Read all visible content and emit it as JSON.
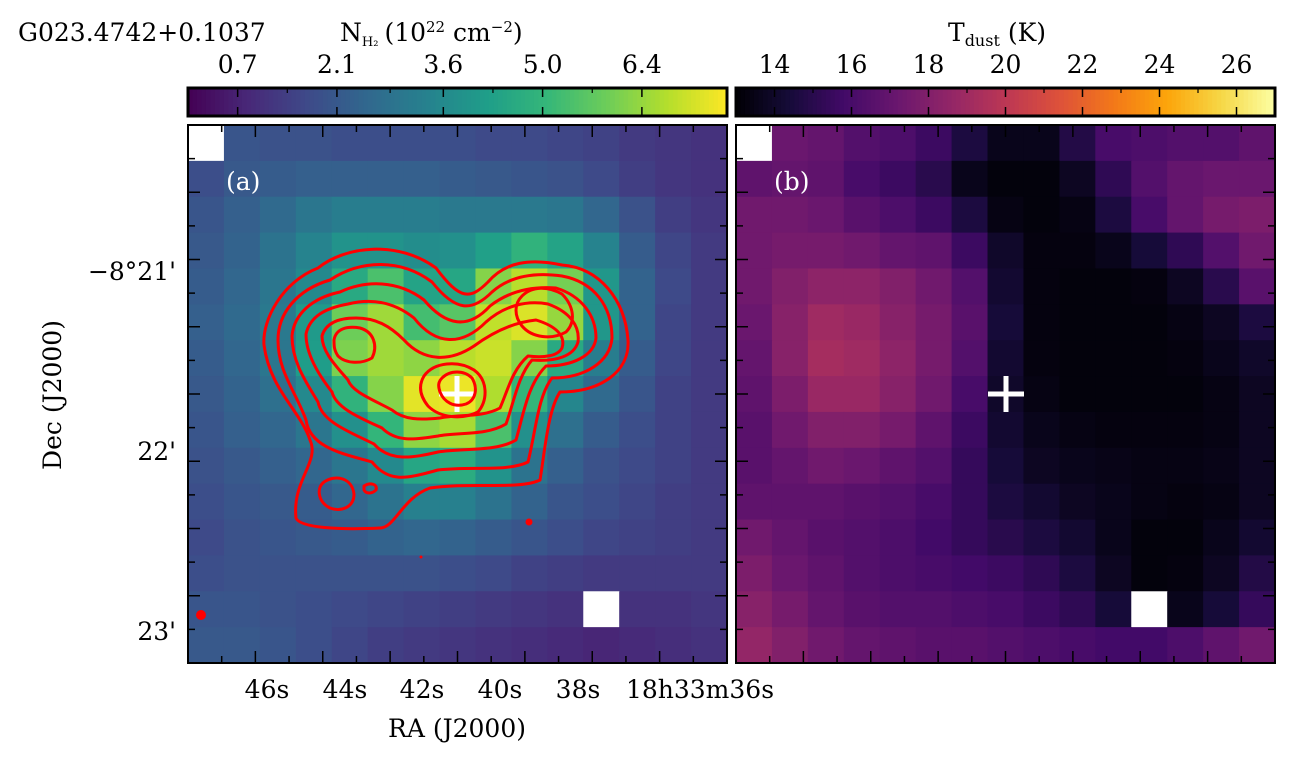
{
  "header": {
    "source_name": "G023.4742+0.1037",
    "nh2_label": "N",
    "nh2_sub": "H₂",
    "nh2_units": "(10",
    "nh2_exp": "22",
    "nh2_units2": " cm",
    "nh2_exp2": "−2",
    "nh2_close": ")",
    "tdust_label": "T",
    "tdust_sub": "dust",
    "tdust_units": " (K)"
  },
  "axes": {
    "xlabel": "RA (J2000)",
    "ylabel": "Dec (J2000)",
    "xticks": [
      "46s",
      "44s",
      "42s",
      "40s",
      "38s",
      "18h33m36s"
    ],
    "yticks": [
      "−8°21'",
      "22'",
      "23'"
    ]
  },
  "colorbars": {
    "nh2": {
      "ticks": [
        "0.7",
        "2.1",
        "3.6",
        "5.0",
        "6.4"
      ],
      "range": [
        0.0,
        7.6
      ],
      "colormap": "viridis"
    },
    "tdust": {
      "ticks": [
        "14",
        "16",
        "18",
        "20",
        "22",
        "24",
        "26"
      ],
      "range": [
        13.0,
        27.0
      ],
      "colormap": "inferno"
    }
  },
  "panels": {
    "a": {
      "label": "(a)"
    },
    "b": {
      "label": "(b)"
    }
  },
  "colors": {
    "contour": "#ff0000",
    "marker": "#ffffff"
  },
  "chart_data": [
    {
      "type": "heatmap",
      "panel": "(a)",
      "quantity": "N(H2)",
      "colorbar_label": "N_H2 (10^22 cm^-2)",
      "colorbar_ticks": [
        0.7,
        2.1,
        3.6,
        5.0,
        6.4
      ],
      "grid_cols": 15,
      "grid_rows": 15,
      "values": [
        [
          -1,
          2.0,
          1.9,
          1.9,
          1.8,
          1.8,
          1.8,
          1.8,
          1.7,
          1.7,
          1.6,
          1.5,
          1.3,
          1.2,
          1.1
        ],
        [
          1.8,
          2.1,
          2.2,
          2.3,
          2.3,
          2.3,
          2.3,
          2.2,
          2.1,
          2.0,
          1.9,
          1.7,
          1.4,
          1.2,
          1.1
        ],
        [
          2.0,
          2.3,
          2.6,
          3.0,
          3.2,
          3.2,
          3.2,
          3.1,
          3.1,
          3.1,
          3.0,
          2.5,
          1.9,
          1.4,
          1.2
        ],
        [
          2.1,
          2.4,
          2.9,
          3.4,
          3.9,
          3.9,
          3.7,
          3.8,
          4.3,
          4.9,
          4.4,
          3.4,
          2.2,
          1.6,
          1.3
        ],
        [
          2.2,
          2.5,
          3.0,
          3.6,
          4.6,
          5.4,
          4.4,
          4.5,
          6.2,
          6.8,
          6.0,
          4.0,
          2.4,
          1.7,
          1.3
        ],
        [
          2.3,
          2.6,
          3.1,
          4.1,
          5.9,
          6.5,
          5.3,
          5.6,
          6.9,
          7.2,
          6.4,
          4.0,
          2.4,
          1.6,
          1.3
        ],
        [
          2.2,
          2.5,
          3.0,
          4.2,
          6.1,
          6.5,
          6.3,
          6.8,
          7.0,
          6.2,
          4.6,
          3.2,
          2.2,
          1.6,
          1.3
        ],
        [
          2.1,
          2.4,
          2.8,
          3.6,
          4.9,
          6.2,
          7.3,
          7.4,
          6.7,
          5.0,
          3.5,
          2.6,
          2.0,
          1.5,
          1.3
        ],
        [
          2.0,
          2.3,
          2.5,
          3.0,
          3.8,
          5.0,
          6.3,
          6.6,
          5.4,
          3.8,
          2.8,
          2.2,
          1.8,
          1.5,
          1.3
        ],
        [
          1.9,
          2.1,
          2.3,
          2.5,
          3.0,
          3.6,
          4.5,
          4.7,
          3.9,
          2.9,
          2.3,
          1.9,
          1.7,
          1.5,
          1.3
        ],
        [
          1.8,
          2.0,
          2.1,
          2.2,
          2.5,
          2.9,
          3.3,
          3.3,
          2.9,
          2.4,
          2.0,
          1.8,
          1.6,
          1.4,
          1.3
        ],
        [
          1.7,
          1.9,
          2.0,
          2.1,
          2.2,
          2.4,
          2.5,
          2.4,
          2.2,
          2.0,
          1.8,
          1.6,
          1.5,
          1.4,
          1.3
        ],
        [
          1.8,
          1.9,
          1.9,
          1.9,
          1.9,
          1.9,
          1.9,
          1.8,
          1.7,
          1.5,
          1.4,
          1.3,
          1.3,
          1.3,
          1.3
        ],
        [
          2.0,
          2.0,
          1.9,
          1.8,
          1.7,
          1.6,
          1.5,
          1.4,
          1.3,
          1.2,
          1.1,
          -1,
          1.1,
          1.1,
          1.2
        ],
        [
          2.1,
          2.1,
          2.0,
          1.8,
          1.6,
          1.4,
          1.3,
          1.2,
          1.1,
          1.0,
          0.9,
          0.8,
          0.9,
          1.0,
          1.1
        ]
      ],
      "contours": true,
      "marker": "+"
    },
    {
      "type": "heatmap",
      "panel": "(b)",
      "quantity": "T_dust",
      "colorbar_label": "T_dust (K)",
      "colorbar_ticks": [
        14,
        16,
        18,
        20,
        22,
        24,
        26
      ],
      "grid_cols": 15,
      "grid_rows": 15,
      "values": [
        [
          -1,
          17.2,
          17.0,
          16.4,
          16.2,
          15.6,
          14.6,
          13.6,
          13.6,
          14.8,
          16.0,
          16.2,
          16.4,
          16.4,
          16.8
        ],
        [
          16.8,
          17.0,
          16.8,
          16.0,
          15.6,
          15.0,
          13.6,
          13.2,
          13.2,
          13.8,
          15.2,
          16.4,
          17.0,
          17.2,
          17.2
        ],
        [
          17.4,
          17.4,
          17.2,
          16.6,
          16.2,
          15.6,
          14.6,
          13.4,
          13.2,
          13.4,
          14.6,
          16.0,
          17.0,
          17.6,
          17.8
        ],
        [
          17.4,
          17.6,
          17.6,
          17.4,
          17.0,
          16.8,
          15.6,
          14.0,
          13.3,
          13.3,
          13.6,
          14.4,
          15.2,
          16.4,
          17.4
        ],
        [
          17.4,
          18.0,
          18.4,
          18.4,
          18.0,
          17.4,
          16.4,
          14.2,
          13.3,
          13.2,
          13.2,
          13.3,
          13.8,
          15.0,
          16.6
        ],
        [
          17.2,
          18.2,
          19.0,
          18.8,
          18.2,
          17.6,
          16.6,
          14.4,
          13.3,
          13.2,
          13.2,
          13.2,
          13.4,
          13.8,
          14.6
        ],
        [
          17.0,
          18.2,
          19.2,
          19.0,
          18.4,
          17.6,
          16.4,
          14.2,
          13.3,
          13.2,
          13.2,
          13.2,
          13.3,
          13.6,
          14.0
        ],
        [
          16.8,
          17.8,
          18.8,
          18.8,
          18.2,
          17.4,
          16.0,
          14.0,
          13.4,
          13.2,
          13.2,
          13.2,
          13.2,
          13.4,
          13.8
        ],
        [
          16.6,
          17.4,
          18.0,
          18.0,
          17.6,
          16.8,
          15.6,
          14.2,
          13.6,
          13.4,
          13.3,
          13.3,
          13.3,
          13.4,
          13.8
        ],
        [
          16.6,
          17.0,
          17.4,
          17.2,
          16.8,
          16.4,
          15.4,
          14.4,
          13.8,
          13.6,
          13.5,
          13.4,
          13.4,
          13.5,
          13.8
        ],
        [
          16.8,
          16.8,
          16.8,
          16.6,
          16.4,
          16.0,
          15.4,
          14.6,
          14.2,
          13.8,
          13.6,
          13.4,
          13.3,
          13.4,
          13.8
        ],
        [
          17.4,
          17.0,
          16.6,
          16.4,
          16.2,
          15.8,
          15.4,
          15.0,
          14.6,
          14.2,
          13.6,
          13.2,
          13.2,
          13.6,
          14.2
        ],
        [
          17.8,
          17.2,
          16.8,
          16.4,
          16.2,
          16.0,
          15.8,
          15.6,
          15.2,
          14.6,
          13.8,
          13.2,
          13.3,
          13.8,
          14.8
        ],
        [
          18.2,
          17.6,
          17.0,
          16.6,
          16.4,
          16.4,
          16.2,
          16.0,
          15.6,
          15.2,
          14.4,
          -1,
          13.6,
          14.4,
          15.4
        ],
        [
          18.6,
          18.0,
          17.4,
          17.0,
          16.8,
          16.6,
          16.6,
          16.4,
          16.2,
          16.0,
          15.8,
          15.8,
          16.2,
          16.8,
          17.4
        ]
      ],
      "marker": "+"
    }
  ]
}
